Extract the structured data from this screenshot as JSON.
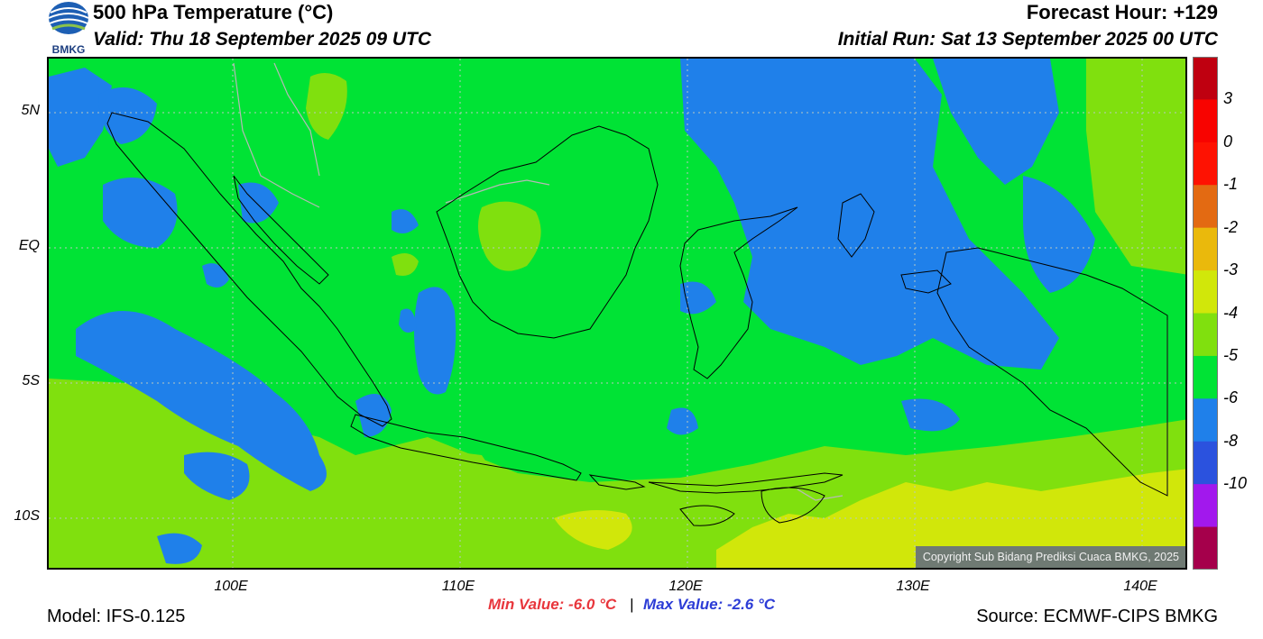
{
  "header": {
    "title": "500 hPa Temperature (°C)",
    "valid": "Valid: Thu 18 September 2025 09 UTC",
    "forecast_hour": "Forecast Hour: +129",
    "initial_run": "Initial Run: Sat 13 September 2025 00 UTC",
    "logo_text": "BMKG"
  },
  "map": {
    "copyright": "Copyright Sub Bidang Prediksi Cuaca BMKG, 2025",
    "lat_labels": [
      "5N",
      "EQ",
      "5S",
      "10S"
    ],
    "lon_labels": [
      "100E",
      "110E",
      "120E",
      "130E",
      "140E"
    ],
    "colors": {
      "le_m6": "#1f80ea",
      "m5_m4": "#00e335",
      "m4_m3": "#80e00e",
      "m3_m2": "#d1e70a",
      "state_line": "#b8b8b8",
      "coast_line": "#000000"
    }
  },
  "colorbar": {
    "labels": [
      "3",
      "0",
      "-1",
      "-2",
      "-3",
      "-4",
      "-5",
      "-6",
      "-8",
      "-10"
    ],
    "colors": [
      "#bf0010",
      "#f80300",
      "#fe1202",
      "#e36a12",
      "#eab90c",
      "#d1e70a",
      "#80e00e",
      "#00e335",
      "#1f80ea",
      "#2b52de",
      "#a218ed",
      "#a5004b"
    ]
  },
  "footer": {
    "min_value": "Min Value: -6.0 °C",
    "separator": "|",
    "max_value": "Max Value: -2.6 °C",
    "model": "Model: IFS-0.125",
    "source": "Source: ECMWF-CIPS BMKG"
  }
}
